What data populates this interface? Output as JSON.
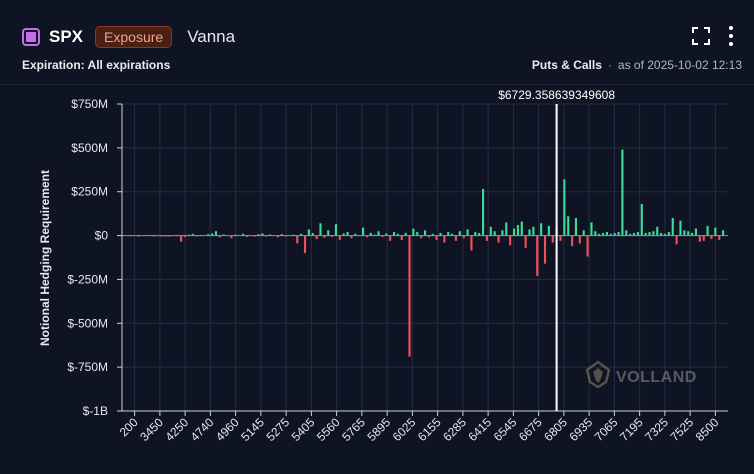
{
  "header": {
    "ticker": "SPX",
    "exposure_label": "Exposure",
    "metric": "Vanna",
    "fullscreen_icon": "fullscreen-icon",
    "menu_icon": "more-vertical-icon"
  },
  "subheader": {
    "expiration": "Expiration: All expirations",
    "mode": "Puts & Calls",
    "separator": "·",
    "as_of": "as of 2025-10-02 12:13"
  },
  "watermark": {
    "logo_icon": "volland-logo-icon",
    "text": "VOLLAND"
  },
  "chart_data": {
    "type": "bar",
    "ylabel": "Notional Hedging Requirement",
    "xlabel": "",
    "title": "",
    "ylim": [
      -1000000000,
      750000000
    ],
    "y_ticks": [
      750000000,
      500000000,
      250000000,
      0,
      -250000000,
      -500000000,
      -750000000,
      -1000000000
    ],
    "y_tick_labels": [
      "$750M",
      "$500M",
      "$250M",
      "$0",
      "$-250M",
      "$-500M",
      "$-750M",
      "$-1B"
    ],
    "x_tick_labels": [
      "200",
      "3450",
      "4250",
      "4740",
      "4960",
      "5145",
      "5275",
      "5405",
      "5560",
      "5765",
      "5895",
      "6025",
      "6155",
      "6285",
      "6415",
      "6545",
      "6675",
      "6805",
      "6935",
      "7065",
      "7195",
      "7325",
      "7525",
      "8500"
    ],
    "spot_label": "$6729.358639349608",
    "spot_position_index": 111,
    "positive_color": "#3ddc97",
    "negative_color": "#f0505a",
    "grid": true,
    "values": [
      0,
      2,
      0,
      -2,
      0,
      3,
      0,
      -3,
      0,
      -5,
      -4,
      -6,
      0,
      3,
      -35,
      -8,
      5,
      10,
      -6,
      4,
      0,
      8,
      12,
      25,
      -10,
      6,
      0,
      -15,
      5,
      0,
      10,
      -8,
      0,
      -5,
      8,
      12,
      -4,
      6,
      0,
      -10,
      8,
      -5,
      0,
      5,
      -45,
      10,
      -100,
      35,
      15,
      -20,
      70,
      -12,
      30,
      -8,
      65,
      -25,
      12,
      20,
      -15,
      10,
      0,
      45,
      -10,
      15,
      5,
      25,
      -8,
      12,
      -30,
      20,
      10,
      -25,
      15,
      -690,
      40,
      20,
      -15,
      30,
      -10,
      10,
      -25,
      15,
      -40,
      20,
      10,
      -30,
      25,
      -15,
      35,
      -85,
      20,
      15,
      265,
      -30,
      50,
      25,
      -40,
      30,
      75,
      -55,
      40,
      60,
      80,
      -70,
      35,
      50,
      -230,
      70,
      -160,
      55,
      -40,
      50,
      -30,
      320,
      110,
      -60,
      100,
      -45,
      30,
      -120,
      75,
      25,
      10,
      15,
      20,
      10,
      15,
      20,
      490,
      30,
      10,
      15,
      20,
      180,
      15,
      20,
      25,
      50,
      15,
      10,
      20,
      100,
      -50,
      85,
      30,
      25,
      15,
      40,
      -35,
      -30,
      55,
      -20,
      45,
      -25,
      30
    ]
  }
}
